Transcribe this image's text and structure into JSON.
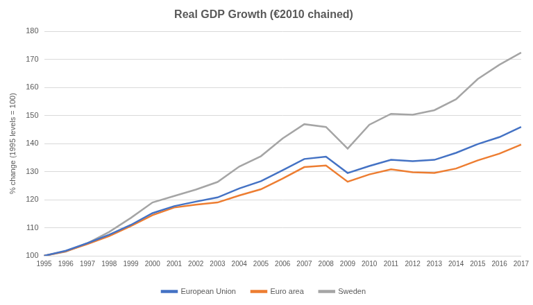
{
  "chart_data": {
    "type": "line",
    "title": "Real GDP Growth (€2010 chained)",
    "y_label": "% change (1995 levels = 100)",
    "categories": [
      "1995",
      "1996",
      "1997",
      "1998",
      "1999",
      "2000",
      "2001",
      "2002",
      "2003",
      "2004",
      "2005",
      "2006",
      "2007",
      "2008",
      "2009",
      "2010",
      "2011",
      "2012",
      "2013",
      "2014",
      "2015",
      "2016",
      "2017"
    ],
    "series": [
      {
        "name": "European Union",
        "color": "#4472c4",
        "values": [
          100,
          101.8,
          104.5,
          107.5,
          111,
          115.2,
          117.7,
          119.3,
          120.8,
          124,
          126.6,
          130.5,
          134.5,
          135.3,
          129.5,
          132,
          134.2,
          133.7,
          134.2,
          136.7,
          139.8,
          142.3,
          145.9
        ]
      },
      {
        "name": "Euro area",
        "color": "#ed7d31",
        "values": [
          100,
          101.6,
          104.2,
          107,
          110.6,
          114.5,
          117.2,
          118.2,
          119,
          121.5,
          123.7,
          127.5,
          131.6,
          132.2,
          126.4,
          129,
          130.8,
          129.8,
          129.5,
          131.1,
          134,
          136.4,
          139.6
        ]
      },
      {
        "name": "Sweden",
        "color": "#a5a5a5",
        "values": [
          100,
          101.5,
          104.5,
          108.5,
          113.5,
          119,
          121.3,
          123.6,
          126.3,
          131.8,
          135.5,
          141.8,
          146.9,
          145.9,
          138.2,
          146.7,
          150.6,
          150.3,
          151.9,
          155.8,
          163,
          168.1,
          172.4
        ]
      }
    ],
    "ylim": [
      100,
      180
    ],
    "yticks": [
      100,
      110,
      120,
      130,
      140,
      150,
      160,
      170,
      180
    ],
    "grid": true,
    "legend": "bottom"
  }
}
